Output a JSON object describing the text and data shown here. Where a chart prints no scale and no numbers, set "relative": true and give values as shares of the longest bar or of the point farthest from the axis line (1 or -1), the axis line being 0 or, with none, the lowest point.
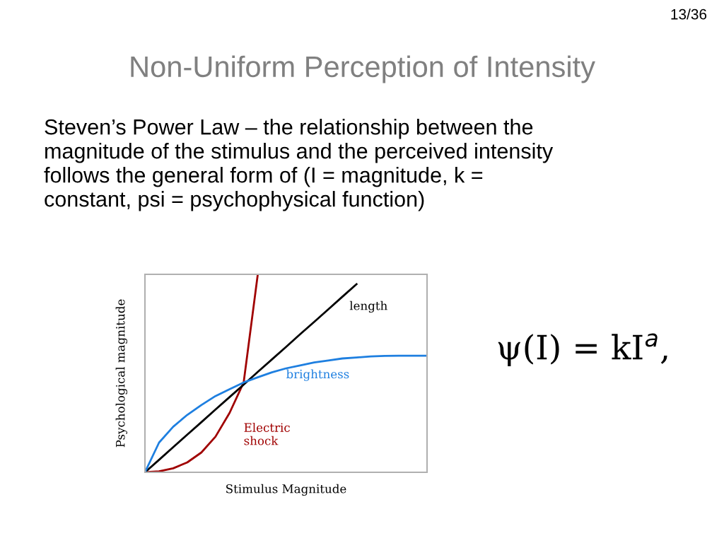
{
  "chart_data": {
    "type": "line",
    "title": "Non-Uniform Perception of Intensity",
    "subtitle": "Steven’s Power Law – the relationship between the\nmagnitude of the stimulus and the perceived intensity\nfollows the general form of (I = magnitude, k =\nconstant, psi = psychophysical function)",
    "xlabel": "Stimulus Magnitude",
    "ylabel": "Psychological magnitude",
    "annotations": [
      "13/36",
      "ψ(I) = kI$^{a}$,"
    ],
    "relative": true,
    "line_style": "solid",
    "categories": [
      null,
      null,
      null,
      null,
      null,
      null,
      null,
      null,
      null,
      null,
      null,
      null,
      null,
      null,
      null,
      null,
      null,
      null,
      null,
      null,
      null
    ],
    "series": [
      {
        "name": "Electric\nshock",
        "color": "#a00000",
        "values": [
          0,
          0.005,
          0.02,
          0.05,
          0.1,
          0.18,
          0.3,
          0.454,
          1.0,
          null,
          null,
          null,
          null,
          null,
          null,
          null,
          null,
          null,
          null,
          null,
          null
        ]
      },
      {
        "name": "length",
        "color": "#000000",
        "values": [
          0,
          0.063,
          0.127,
          0.19,
          0.253,
          0.317,
          0.38,
          0.443,
          0.507,
          0.57,
          0.633,
          0.697,
          0.76,
          0.823,
          0.887,
          0.95,
          null,
          null,
          null,
          null,
          null
        ]
      },
      {
        "name": "brightness",
        "color": "#1e7fe0",
        "values": [
          0,
          0.15,
          0.23,
          0.29,
          0.34,
          0.385,
          0.42,
          0.454,
          0.48,
          0.505,
          0.525,
          0.54,
          0.555,
          0.565,
          0.575,
          0.58,
          0.585,
          0.588,
          0.589,
          0.589,
          0.589
        ]
      }
    ]
  }
}
